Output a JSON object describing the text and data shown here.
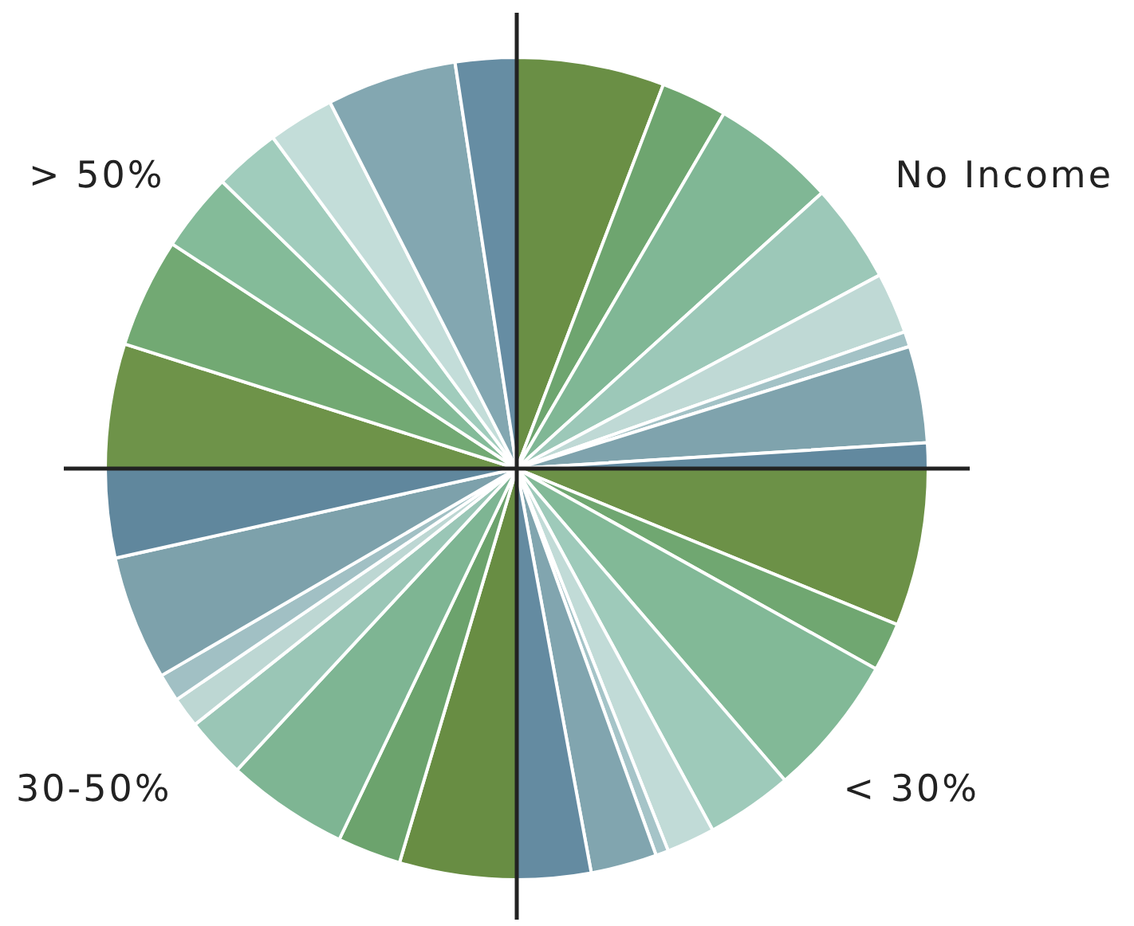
{
  "chart_data": {
    "type": "pie",
    "categories": [
      null,
      null,
      null,
      null,
      null,
      null,
      null,
      null,
      null,
      null,
      null,
      null,
      null,
      null,
      null,
      null,
      null,
      null,
      null,
      null,
      null,
      null,
      null,
      null,
      null,
      null,
      null,
      null,
      null,
      null,
      null
    ],
    "values": [
      5.8,
      2.6,
      4.9,
      3.9,
      2.4,
      0.6,
      3.8,
      1.0,
      6.2,
      1.9,
      5.6,
      3.4,
      1.9,
      0.5,
      2.6,
      2.9,
      4.6,
      2.5,
      4.8,
      2.4,
      1.2,
      1.1,
      4.9,
      3.5,
      4.9,
      4.3,
      3.1,
      2.6,
      2.6,
      5.1,
      2.4
    ],
    "colors": [
      "#6a8f45",
      "#6ea56f",
      "#80b795",
      "#9cc8b8",
      "#bfd9d5",
      "#a3c2c6",
      "#7fa3ad",
      "#62899f",
      "#6c9147",
      "#70a771",
      "#82b997",
      "#9ecaba",
      "#c1dbd7",
      "#a5c4c8",
      "#81a5af",
      "#648ba1",
      "#688d43",
      "#6ca36d",
      "#7eb593",
      "#9ac6b6",
      "#bdd7d3",
      "#a1c0c4",
      "#7da1ab",
      "#60879d",
      "#6e9349",
      "#72a973",
      "#84bb99",
      "#a0ccbc",
      "#c3ddd9",
      "#83a7b1",
      "#668da3"
    ],
    "annotations": [
      "No Income",
      "< 30%",
      "30-50%",
      "> 50%"
    ]
  }
}
